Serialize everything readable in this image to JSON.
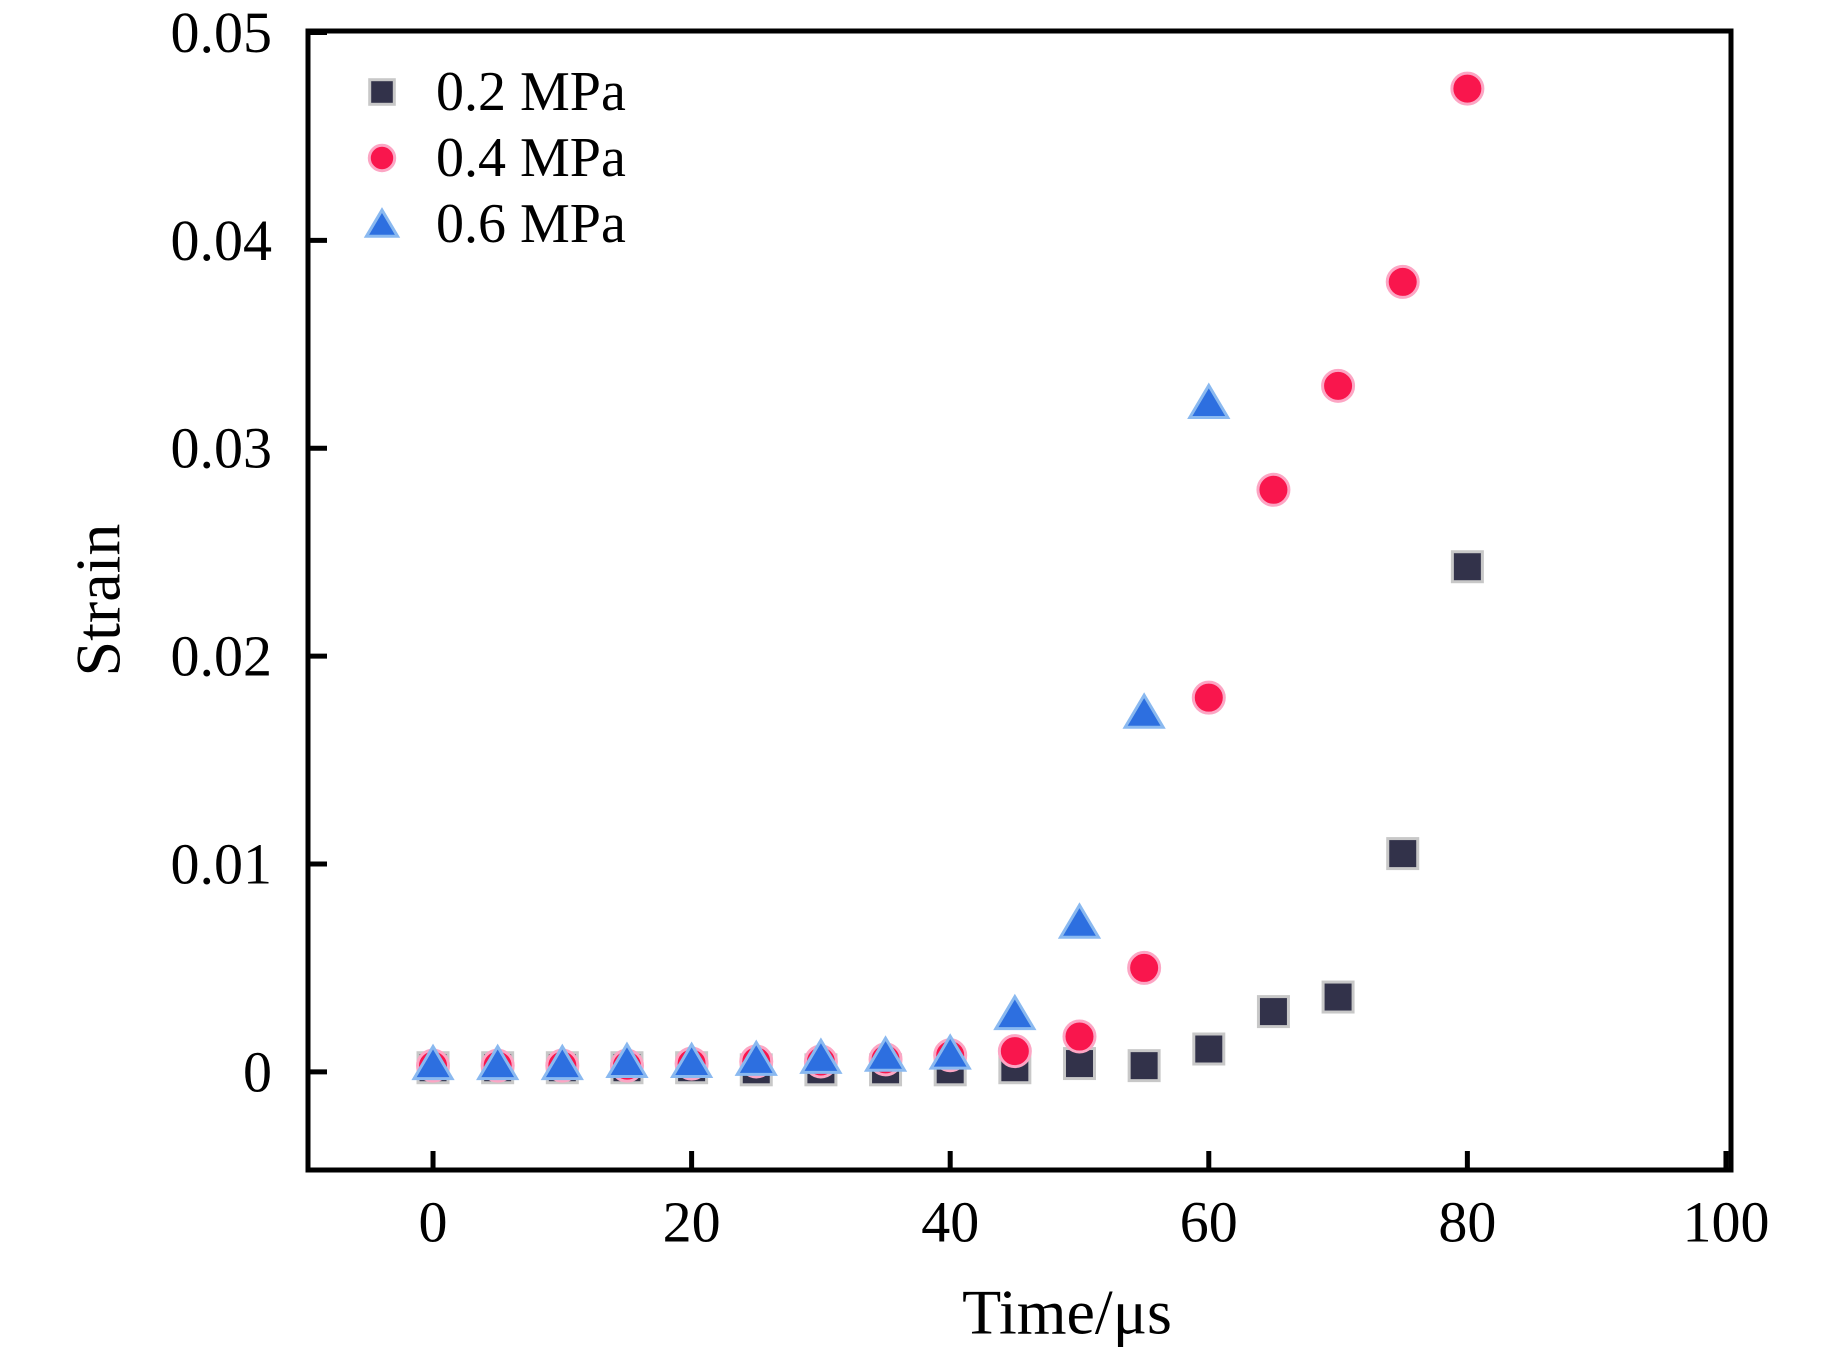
{
  "figure": {
    "background": "#ffffff",
    "text_color": "#000000",
    "frame_color": "#000000"
  },
  "chart_data": {
    "type": "scatter",
    "title": "",
    "xlabel": "Time/μs",
    "ylabel": "Strain",
    "grid": false,
    "legend_position": "top-left",
    "xlim": [
      -9.67,
      100.39
    ],
    "ylim": [
      -0.00472,
      0.05007
    ],
    "x_ticks": [
      0,
      20,
      40,
      60,
      80,
      100
    ],
    "x_tick_labels": [
      "0",
      "20",
      "40",
      "60",
      "80",
      "100"
    ],
    "y_ticks": [
      0,
      0.01,
      0.02,
      0.03,
      0.04,
      0.05
    ],
    "y_tick_labels": [
      "0",
      "0.01",
      "0.02",
      "0.03",
      "0.04",
      "0.05"
    ],
    "series": [
      {
        "name": "0.2 MPa",
        "marker": "square",
        "color": "#32324a",
        "edge": "#c8c8c8",
        "x": [
          0,
          5,
          10,
          15,
          20,
          25,
          30,
          35,
          40,
          45,
          50,
          55,
          60,
          65,
          70,
          75,
          80
        ],
        "y": [
          0.0002,
          0.0002,
          0.0002,
          0.0002,
          0.0002,
          0.0001,
          0.0001,
          0.0001,
          0.0001,
          0.0002,
          0.0004,
          0.0003,
          0.0011,
          0.0029,
          0.0036,
          0.0105,
          0.0243
        ]
      },
      {
        "name": "0.4 MPa",
        "marker": "circle",
        "color": "#f9164d",
        "edge": "#fca6c4",
        "x": [
          0,
          5,
          10,
          15,
          20,
          25,
          30,
          35,
          40,
          45,
          50,
          55,
          60,
          65,
          70,
          75,
          80
        ],
        "y": [
          0.0003,
          0.0003,
          0.0003,
          0.0003,
          0.0004,
          0.0005,
          0.0005,
          0.0006,
          0.0008,
          0.001,
          0.0017,
          0.005,
          0.018,
          0.028,
          0.033,
          0.038,
          0.0473
        ]
      },
      {
        "name": "0.6 MPa",
        "marker": "triangle",
        "color": "#2d6fe0",
        "edge": "#8ab9f0",
        "x": [
          0,
          5,
          10,
          15,
          20,
          25,
          30,
          35,
          40,
          45,
          50,
          55,
          60
        ],
        "y": [
          0.0004,
          0.0004,
          0.0004,
          0.0005,
          0.0005,
          0.0006,
          0.0007,
          0.0008,
          0.0009,
          0.0028,
          0.0072,
          0.0173,
          0.0322
        ]
      }
    ]
  },
  "legend": {
    "items": [
      {
        "label": "0.2 MPa"
      },
      {
        "label": "0.4 MPa"
      },
      {
        "label": "0.6 MPa"
      }
    ]
  }
}
